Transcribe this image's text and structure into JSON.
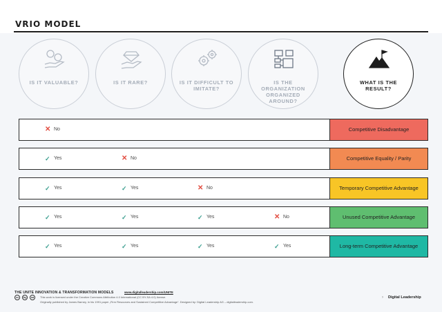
{
  "title": "VRIO MODEL",
  "questions": [
    {
      "label": "IS IT VALUABLE?",
      "icon": "money-hand-icon"
    },
    {
      "label": "IS IT RARE?",
      "icon": "diamond-hand-icon"
    },
    {
      "label": "IS IT DIFFICULT TO IMITATE?",
      "icon": "gears-icon"
    },
    {
      "label": "IS THE ORGANIZATION ORGANIZED AROUND?",
      "icon": "org-chart-icon"
    },
    {
      "label": "WHAT IS THE RESULT?",
      "icon": "mountain-flag-icon"
    }
  ],
  "rows": [
    {
      "answers": [
        "No"
      ],
      "result": "Competitive Disadvantage",
      "color": "#ee6a5e"
    },
    {
      "answers": [
        "Yes",
        "No"
      ],
      "result": "Competitive Equality / Parity",
      "color": "#f28a52"
    },
    {
      "answers": [
        "Yes",
        "Yes",
        "No"
      ],
      "result": "Temporary Competitive Advantage",
      "color": "#f8c526"
    },
    {
      "answers": [
        "Yes",
        "Yes",
        "Yes",
        "No"
      ],
      "result": "Unused Competitive Advantage",
      "color": "#5fbe70"
    },
    {
      "answers": [
        "Yes",
        "Yes",
        "Yes",
        "Yes"
      ],
      "result": "Long-term Competitive Advantage",
      "color": "#1fb8a4"
    }
  ],
  "footer": {
    "title": "THE UNITE INNOVATION & TRANSFORMATION MODELS",
    "url": "www.digitalleadership.com/UNITE",
    "license": "This work is licensed under the Creative Commons Attribution 4.0 International (CC BY-SA 4.0) license.",
    "origin": "Originally published by James Barney, in his 1991 paper „Firm Resources and Sustained Competitive Advantage“. Designed by: Digital Leadership AG – digitalleadership.com.",
    "cc_icons": [
      "cc",
      "by",
      "sa"
    ],
    "brand": "Digital Leadership"
  }
}
